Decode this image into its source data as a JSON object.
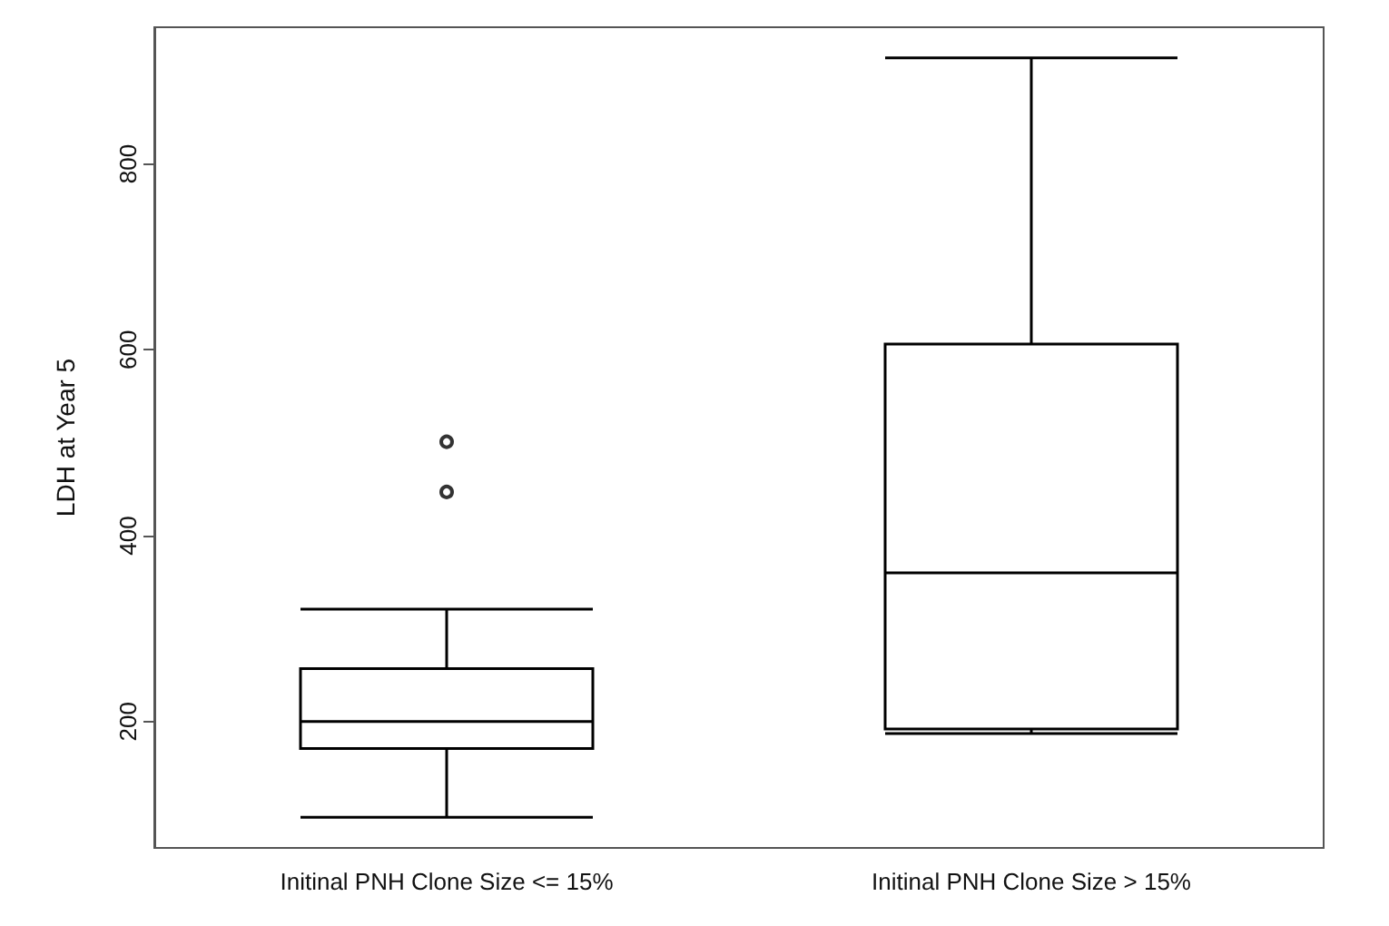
{
  "chart_data": {
    "type": "box",
    "ylabel": "LDH at Year 5",
    "categories": [
      "Initinal PNH Clone Size <= 15%",
      "Initinal PNH Clone Size > 15%"
    ],
    "boxes": [
      {
        "low": 97,
        "q1": 171,
        "median": 200,
        "q3": 257,
        "high": 321,
        "outliers": [
          447,
          501
        ]
      },
      {
        "low": 187,
        "q1": 192,
        "median": 360,
        "q3": 606,
        "high": 914
      }
    ],
    "color": "#000000",
    "ylim": [
      64,
      947
    ],
    "yticks": [
      200,
      400,
      600,
      800
    ],
    "grid": false
  }
}
